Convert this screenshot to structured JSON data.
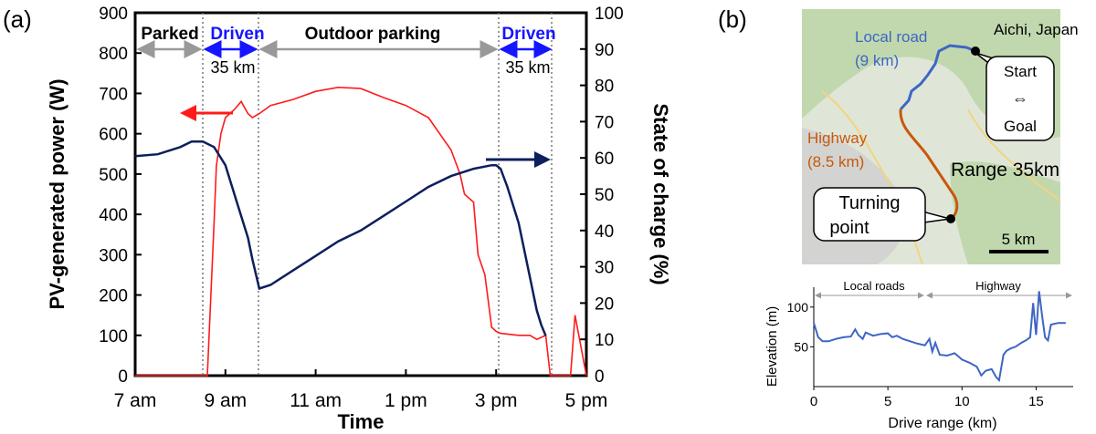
{
  "panel_a": {
    "label": "(a)",
    "xlabel": "Time",
    "ylabel_left": "PV-generated power (W)",
    "ylabel_right": "State of charge (%)",
    "x_ticks": [
      "7 am",
      "9 am",
      "11 am",
      "1 pm",
      "3 pm",
      "5 pm"
    ],
    "phase_labels": {
      "parked": "Parked",
      "driven1": "Driven",
      "outdoor": "Outdoor parking",
      "driven2": "Driven"
    },
    "distance_labels": [
      "35 km",
      "35 km"
    ],
    "colors": {
      "power": "#ff1a1a",
      "soc": "#0d1f5c",
      "driven": "#1515ff",
      "phase_arrow": "#999999"
    }
  },
  "panel_b": {
    "label": "(b)",
    "map": {
      "location": "Aichi, Japan",
      "local_road": "Local road",
      "local_road_km": "(9 km)",
      "highway": "Highway",
      "highway_km": "(8.5 km)",
      "range": "Range 35km",
      "start": "Start",
      "swap": "⇔",
      "goal": "Goal",
      "turning1": "Turning",
      "turning2": "point",
      "scale": "5 km",
      "colors": {
        "local": "#3d66c4",
        "highway": "#c8580c"
      }
    },
    "elevation": {
      "xlabel": "Drive range (km)",
      "ylabel": "Elevation (m)",
      "segment_local": "Local roads",
      "segment_highway": "Highway",
      "x_ticks": [
        "0",
        "5",
        "10",
        "15"
      ],
      "y_ticks": [
        "50",
        "100"
      ]
    }
  },
  "chart_data": [
    {
      "type": "line",
      "title": "",
      "xlabel": "Time",
      "ylabel": "PV-generated power (W)",
      "y2label": "State of charge (%)",
      "xlim": [
        7,
        17
      ],
      "ylim": [
        0,
        900
      ],
      "y2lim": [
        0,
        100
      ],
      "x_unit": "hour of day",
      "series": [
        {
          "axis": "left",
          "x": [
            7.0,
            8.5,
            8.6,
            8.75,
            8.8,
            8.9,
            9.0,
            9.2,
            9.35,
            9.5,
            9.6,
            9.75,
            10.0,
            10.5,
            11.0,
            11.5,
            12.0,
            12.5,
            13.0,
            13.5,
            14.0,
            14.2,
            14.3,
            14.5,
            14.6,
            14.75,
            14.9,
            15.0,
            15.1,
            15.5,
            15.75,
            15.9,
            16.0,
            16.1,
            16.2,
            16.4,
            16.5,
            16.65,
            16.75,
            17.0
          ],
          "y": [
            0,
            0,
            0,
            380,
            520,
            600,
            640,
            660,
            680,
            650,
            640,
            650,
            670,
            685,
            705,
            715,
            712,
            690,
            670,
            640,
            560,
            500,
            450,
            430,
            300,
            250,
            120,
            110,
            105,
            100,
            100,
            90,
            95,
            100,
            0,
            0,
            0,
            0,
            150,
            0
          ]
        },
        {
          "axis": "right",
          "x": [
            7.0,
            7.5,
            8.0,
            8.25,
            8.5,
            8.75,
            9.0,
            9.25,
            9.5,
            9.6,
            9.75,
            10.0,
            10.5,
            11.0,
            11.5,
            12.0,
            12.5,
            13.0,
            13.5,
            14.0,
            14.5,
            14.9,
            15.0,
            15.1,
            15.25,
            15.5,
            15.75,
            15.9,
            16.0,
            16.1
          ],
          "y": [
            60.5,
            61,
            63,
            64.5,
            64.5,
            63,
            58,
            48,
            38,
            32,
            24,
            25,
            29,
            33,
            37,
            40,
            44,
            48,
            52,
            55,
            57,
            58,
            58,
            57,
            52,
            42,
            27,
            18,
            14,
            11
          ]
        }
      ]
    },
    {
      "type": "line",
      "title": "",
      "xlabel": "Drive range (km)",
      "ylabel": "Elevation (m)",
      "xlim": [
        0,
        17.5
      ],
      "ylim": [
        0,
        125
      ],
      "series": [
        {
          "x": [
            0,
            0.3,
            0.6,
            1,
            1.5,
            2,
            2.5,
            2.8,
            3,
            3.3,
            3.5,
            4,
            4.5,
            5,
            5.3,
            5.6,
            6,
            6.5,
            7,
            7.5,
            7.8,
            8,
            8.2,
            8.5,
            9,
            9.5,
            10,
            10.5,
            11,
            11.3,
            11.6,
            12,
            12.3,
            12.5,
            12.8,
            13,
            13.3,
            13.6,
            14,
            14.3,
            14.6,
            14.8,
            15,
            15.2,
            15.4,
            15.6,
            15.8,
            16,
            16.5,
            17
          ],
          "y": [
            80,
            62,
            57,
            57,
            60,
            62,
            63,
            72,
            65,
            60,
            68,
            64,
            66,
            67,
            62,
            64,
            60,
            57,
            54,
            52,
            60,
            44,
            55,
            40,
            39,
            42,
            34,
            30,
            25,
            14,
            20,
            22,
            12,
            8,
            40,
            45,
            48,
            50,
            55,
            58,
            62,
            105,
            65,
            120,
            90,
            62,
            58,
            78,
            80,
            80
          ]
        }
      ]
    }
  ]
}
